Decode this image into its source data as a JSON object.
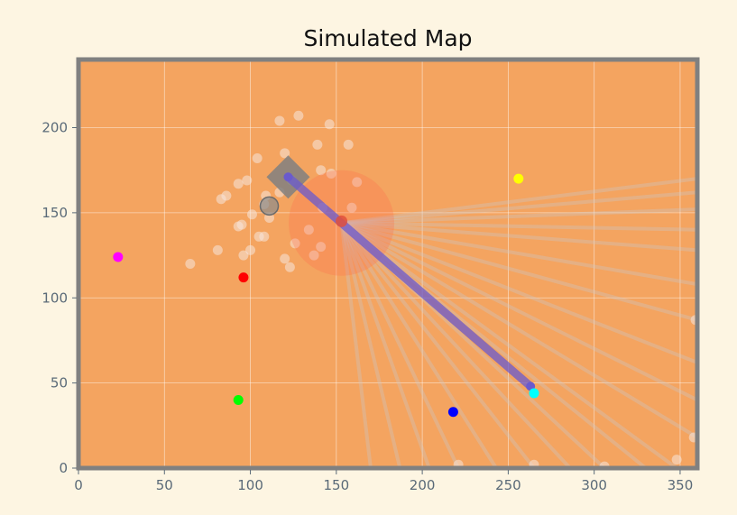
{
  "chart_data": {
    "type": "scatter",
    "title": "Simulated Map",
    "xlabel": "",
    "ylabel": "",
    "xlim": [
      0,
      360
    ],
    "ylim": [
      0,
      240
    ],
    "xticks": [
      0,
      50,
      100,
      150,
      200,
      250,
      300,
      350
    ],
    "yticks": [
      0,
      50,
      100,
      150,
      200
    ],
    "grid": true,
    "colors": {
      "background": "#fdf5e2",
      "plot_area": "#f4a460",
      "frame": "#808080",
      "grid": "#ffffff",
      "tick_label": "#5a6a78",
      "rays": "#c8c8c8",
      "path": "#6a5acd",
      "range_circle": "#ff6347",
      "robot": "#808080"
    },
    "landmarks": [
      {
        "color": "#ff00ff",
        "x": 23,
        "y": 124
      },
      {
        "color": "#ff0000",
        "x": 96,
        "y": 112
      },
      {
        "color": "#00ff00",
        "x": 93,
        "y": 40
      },
      {
        "color": "#0000ff",
        "x": 218,
        "y": 33
      },
      {
        "color": "#ffff00",
        "x": 256,
        "y": 170
      },
      {
        "color": "#00ffff",
        "x": 265,
        "y": 44
      }
    ],
    "particles": [
      {
        "x": 117,
        "y": 204
      },
      {
        "x": 128,
        "y": 207
      },
      {
        "x": 146,
        "y": 202
      },
      {
        "x": 120,
        "y": 185
      },
      {
        "x": 139,
        "y": 190
      },
      {
        "x": 157,
        "y": 190
      },
      {
        "x": 104,
        "y": 182
      },
      {
        "x": 141,
        "y": 175
      },
      {
        "x": 147,
        "y": 173
      },
      {
        "x": 98,
        "y": 169
      },
      {
        "x": 93,
        "y": 167
      },
      {
        "x": 86,
        "y": 160
      },
      {
        "x": 83,
        "y": 158
      },
      {
        "x": 109,
        "y": 160
      },
      {
        "x": 117,
        "y": 162
      },
      {
        "x": 124,
        "y": 169
      },
      {
        "x": 162,
        "y": 168
      },
      {
        "x": 108,
        "y": 155
      },
      {
        "x": 101,
        "y": 149
      },
      {
        "x": 111,
        "y": 147
      },
      {
        "x": 142,
        "y": 153
      },
      {
        "x": 159,
        "y": 153
      },
      {
        "x": 95,
        "y": 143
      },
      {
        "x": 93,
        "y": 142
      },
      {
        "x": 105,
        "y": 136
      },
      {
        "x": 108,
        "y": 136
      },
      {
        "x": 134,
        "y": 140
      },
      {
        "x": 126,
        "y": 132
      },
      {
        "x": 141,
        "y": 130
      },
      {
        "x": 100,
        "y": 128
      },
      {
        "x": 81,
        "y": 128
      },
      {
        "x": 96,
        "y": 125
      },
      {
        "x": 137,
        "y": 125
      },
      {
        "x": 120,
        "y": 123
      },
      {
        "x": 123,
        "y": 118
      },
      {
        "x": 65,
        "y": 120
      },
      {
        "x": 221,
        "y": 2
      },
      {
        "x": 265,
        "y": 2
      },
      {
        "x": 306,
        "y": 1
      },
      {
        "x": 348,
        "y": 5
      },
      {
        "x": 358,
        "y": 18
      },
      {
        "x": 359,
        "y": 87
      }
    ],
    "estimate": {
      "x": 111,
      "y": 154
    },
    "robot": {
      "x": 122,
      "y": 171,
      "heading_deg": -45
    },
    "range_circle": {
      "x": 153,
      "y": 144,
      "radius": 31
    },
    "target": {
      "x": 153,
      "y": 145
    },
    "path": {
      "start": {
        "x": 122,
        "y": 171
      },
      "end": {
        "x": 263,
        "y": 48
      }
    },
    "rays": {
      "origin": {
        "x": 153,
        "y": 144
      },
      "endpoints": [
        {
          "x": 170,
          "y": 0
        },
        {
          "x": 187,
          "y": 0
        },
        {
          "x": 204,
          "y": 0
        },
        {
          "x": 221,
          "y": 0
        },
        {
          "x": 243,
          "y": 0
        },
        {
          "x": 265,
          "y": 0
        },
        {
          "x": 286,
          "y": 0
        },
        {
          "x": 306,
          "y": 0
        },
        {
          "x": 330,
          "y": 0
        },
        {
          "x": 348,
          "y": 0
        },
        {
          "x": 360,
          "y": 18
        },
        {
          "x": 360,
          "y": 40
        },
        {
          "x": 360,
          "y": 62
        },
        {
          "x": 360,
          "y": 87
        },
        {
          "x": 360,
          "y": 108
        },
        {
          "x": 360,
          "y": 128
        },
        {
          "x": 360,
          "y": 140
        },
        {
          "x": 360,
          "y": 152
        },
        {
          "x": 360,
          "y": 162
        },
        {
          "x": 360,
          "y": 170
        }
      ]
    }
  }
}
